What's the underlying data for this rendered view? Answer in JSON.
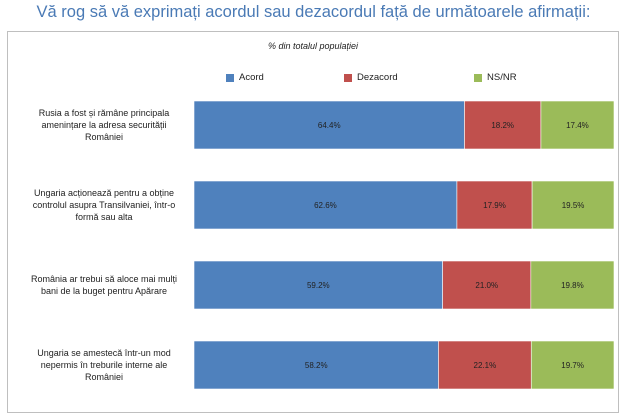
{
  "page_title": "Vă rog să vă exprimați acordul sau dezacordul față de următoarele afirmații:",
  "chart_data": {
    "type": "bar",
    "orientation": "horizontal",
    "stacked": true,
    "percent": true,
    "subtitle": "% din totalul populației",
    "legend_position": "top",
    "categories": [
      [
        "Rusia a fost și rămâne principala",
        "amenințare la adresa securității",
        "României"
      ],
      [
        "Ungaria acționează pentru a obține",
        "controlul asupra Transilvaniei, într-o",
        "formă sau alta"
      ],
      [
        "România ar trebui să aloce mai mulți",
        "bani de la buget pentru Apărare"
      ],
      [
        "Ungaria se amestecă într-un mod",
        "nepermis în treburile interne ale",
        "României"
      ]
    ],
    "series": [
      {
        "name": "Acord",
        "color": "#4f81bd",
        "values": [
          64.4,
          62.6,
          59.2,
          58.2
        ],
        "labels": [
          "64.4%",
          "62.6%",
          "59.2%",
          "58.2%"
        ]
      },
      {
        "name": "Dezacord",
        "color": "#c0504d",
        "values": [
          18.2,
          17.9,
          21.0,
          22.1
        ],
        "labels": [
          "18.2%",
          "17.9%",
          "21.0%",
          "22.1%"
        ]
      },
      {
        "name": "NS/NR",
        "color": "#9bbb59",
        "values": [
          17.4,
          19.5,
          19.8,
          19.7
        ],
        "labels": [
          "17.4%",
          "19.5%",
          "19.8%",
          "19.7%"
        ]
      }
    ],
    "xlim": [
      0,
      100
    ],
    "grid": false
  }
}
